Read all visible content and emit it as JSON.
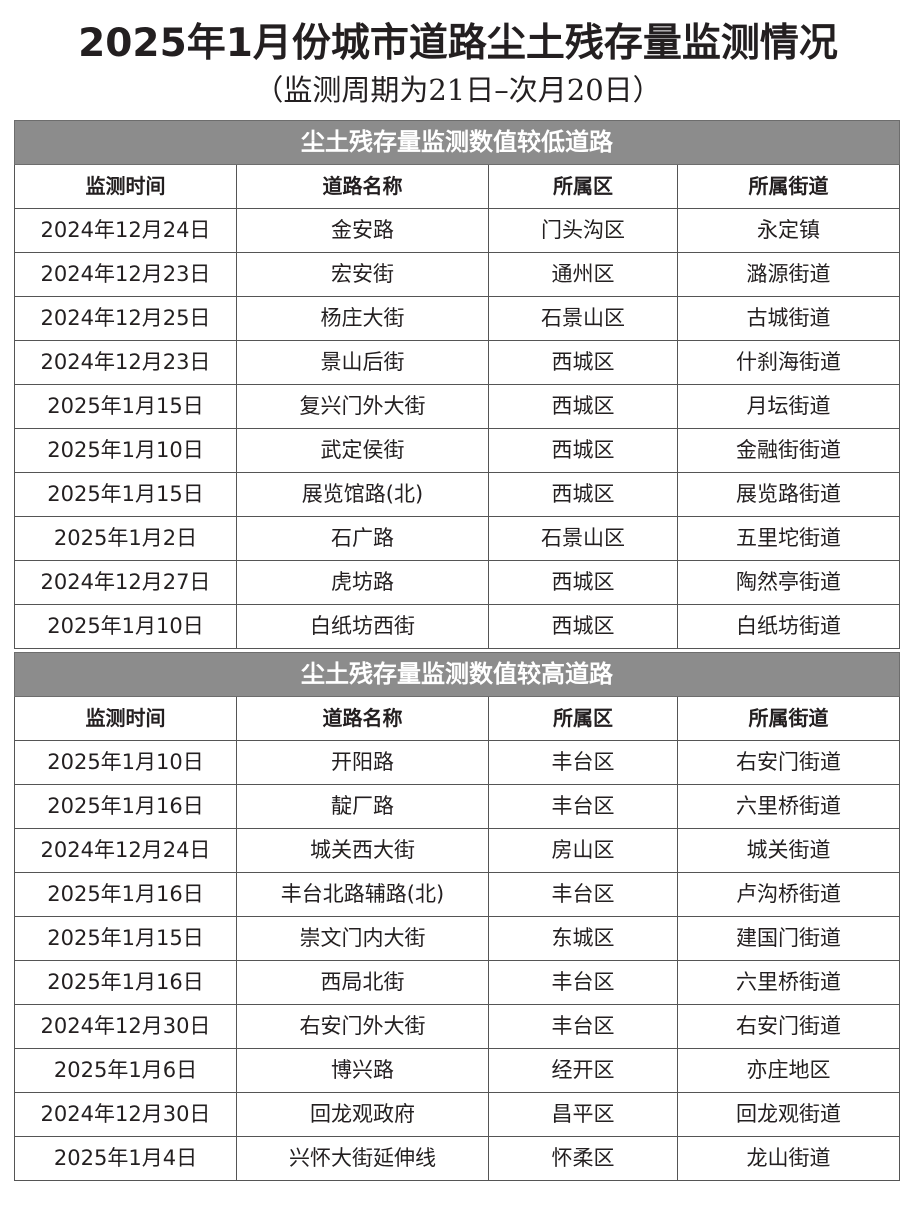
{
  "title": "2025年1月份城市道路尘土残存量监测情况",
  "subtitle": "（监测周期为21日–次月20日）",
  "columns": [
    "监测时间",
    "道路名称",
    "所属区",
    "所属街道"
  ],
  "sections": [
    {
      "heading": "尘土残存量监测数值较低道路",
      "rows": [
        [
          "2024年12月24日",
          "金安路",
          "门头沟区",
          "永定镇"
        ],
        [
          "2024年12月23日",
          "宏安街",
          "通州区",
          "潞源街道"
        ],
        [
          "2024年12月25日",
          "杨庄大街",
          "石景山区",
          "古城街道"
        ],
        [
          "2024年12月23日",
          "景山后街",
          "西城区",
          "什刹海街道"
        ],
        [
          "2025年1月15日",
          "复兴门外大街",
          "西城区",
          "月坛街道"
        ],
        [
          "2025年1月10日",
          "武定侯街",
          "西城区",
          "金融街街道"
        ],
        [
          "2025年1月15日",
          "展览馆路(北)",
          "西城区",
          "展览路街道"
        ],
        [
          "2025年1月2日",
          "石广路",
          "石景山区",
          "五里坨街道"
        ],
        [
          "2024年12月27日",
          "虎坊路",
          "西城区",
          "陶然亭街道"
        ],
        [
          "2025年1月10日",
          "白纸坊西街",
          "西城区",
          "白纸坊街道"
        ]
      ]
    },
    {
      "heading": "尘土残存量监测数值较高道路",
      "rows": [
        [
          "2025年1月10日",
          "开阳路",
          "丰台区",
          "右安门街道"
        ],
        [
          "2025年1月16日",
          "靛厂路",
          "丰台区",
          "六里桥街道"
        ],
        [
          "2024年12月24日",
          "城关西大街",
          "房山区",
          "城关街道"
        ],
        [
          "2025年1月16日",
          "丰台北路辅路(北)",
          "丰台区",
          "卢沟桥街道"
        ],
        [
          "2025年1月15日",
          "崇文门内大街",
          "东城区",
          "建国门街道"
        ],
        [
          "2025年1月16日",
          "西局北街",
          "丰台区",
          "六里桥街道"
        ],
        [
          "2024年12月30日",
          "右安门外大街",
          "丰台区",
          "右安门街道"
        ],
        [
          "2025年1月6日",
          "博兴路",
          "经开区",
          "亦庄地区"
        ],
        [
          "2024年12月30日",
          "回龙观政府",
          "昌平区",
          "回龙观街道"
        ],
        [
          "2025年1月4日",
          "兴怀大街延伸线",
          "怀柔区",
          "龙山街道"
        ]
      ]
    }
  ]
}
